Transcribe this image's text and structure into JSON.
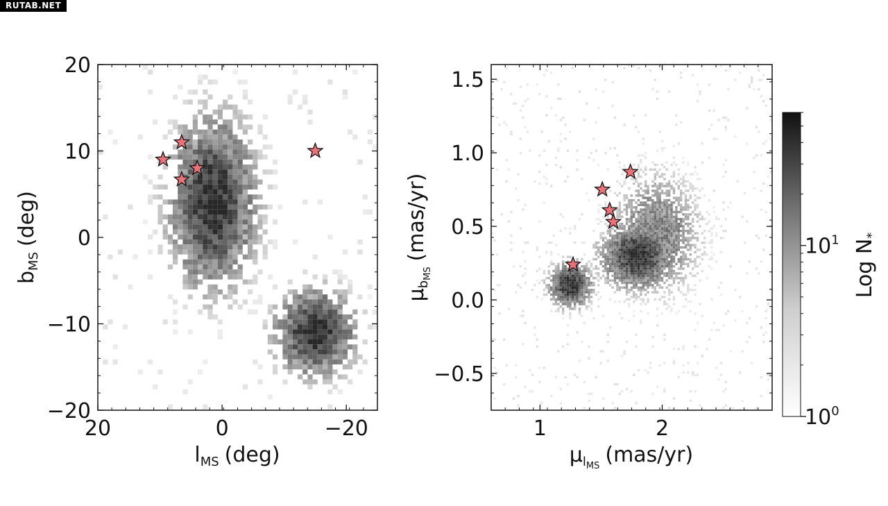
{
  "watermark": "RUTAB.NET",
  "chart_data": [
    {
      "type": "heatmap",
      "title": "",
      "xlabel": "l",
      "xlabel_sub": "MS",
      "xlabel_unit": "(deg)",
      "ylabel": "b",
      "ylabel_sub": "MS",
      "ylabel_unit": "(deg)",
      "xlim": [
        20,
        -25
      ],
      "ylim": [
        -20,
        20
      ],
      "xticks": [
        20,
        0,
        -20
      ],
      "xtick_labels": [
        "20",
        "0",
        "−20"
      ],
      "yticks": [
        20,
        10,
        0,
        -10,
        -20
      ],
      "ytick_labels": [
        "20",
        "10",
        "0",
        "−10",
        "−20"
      ],
      "grid": false,
      "colormap": "greys",
      "density_regions": [
        {
          "center": [
            1.5,
            4.0
          ],
          "size": [
            14,
            20
          ],
          "level": "high"
        },
        {
          "center": [
            -15.0,
            -11.0
          ],
          "size": [
            13,
            10
          ],
          "level": "high"
        }
      ],
      "stars": {
        "color": "#e8737a",
        "points": [
          {
            "x": 6.5,
            "y": 11.0
          },
          {
            "x": 9.5,
            "y": 9.0
          },
          {
            "x": 4.0,
            "y": 8.0
          },
          {
            "x": 6.5,
            "y": 6.7
          },
          {
            "x": -15.0,
            "y": 10.0
          }
        ]
      }
    },
    {
      "type": "heatmap",
      "title": "",
      "xlabel": "μ",
      "xlabel_sub": "l",
      "xlabel_subsub": "MS",
      "xlabel_unit": "(mas/yr)",
      "ylabel": "μ",
      "ylabel_sub": "b",
      "ylabel_subsub": "MS",
      "ylabel_unit": "(mas/yr)",
      "xlim": [
        0.6,
        2.9
      ],
      "ylim": [
        -0.75,
        1.6
      ],
      "xticks": [
        1,
        2
      ],
      "xtick_labels": [
        "1",
        "2"
      ],
      "yticks": [
        1.5,
        1.0,
        0.5,
        0.0,
        -0.5
      ],
      "ytick_labels": [
        "1.5",
        "1.0",
        "0.5",
        "0.0",
        "−0.5"
      ],
      "grid": false,
      "colormap": "greys",
      "density_regions": [
        {
          "center": [
            1.25,
            0.1
          ],
          "size": [
            0.35,
            0.3
          ],
          "level": "high"
        },
        {
          "center": [
            1.8,
            0.3
          ],
          "size": [
            0.6,
            0.45
          ],
          "level": "high"
        },
        {
          "center": [
            1.95,
            0.45
          ],
          "size": [
            0.7,
            0.8
          ],
          "level": "medium"
        }
      ],
      "stars": {
        "color": "#e8737a",
        "points": [
          {
            "x": 1.74,
            "y": 0.87
          },
          {
            "x": 1.51,
            "y": 0.75
          },
          {
            "x": 1.57,
            "y": 0.61
          },
          {
            "x": 1.6,
            "y": 0.53
          },
          {
            "x": 1.27,
            "y": 0.24
          }
        ]
      }
    }
  ],
  "colorbar": {
    "label": "Log N",
    "label_sub": "*",
    "scale": "log",
    "range": [
      1,
      60
    ],
    "ticks": [
      {
        "value": 1,
        "base": "10",
        "exp": "0"
      },
      {
        "value": 10,
        "base": "10",
        "exp": "1"
      }
    ],
    "colormap": "greys"
  }
}
